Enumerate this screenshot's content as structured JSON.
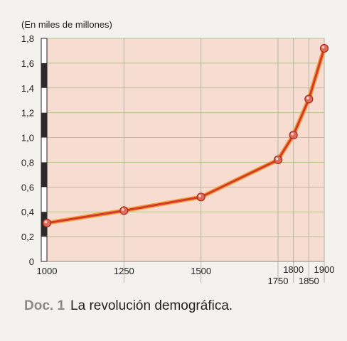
{
  "chart_data": {
    "type": "line",
    "title": "",
    "unit_label": "(En miles de millones)",
    "xlabel": "",
    "ylabel": "",
    "x": [
      1000,
      1250,
      1500,
      1750,
      1800,
      1850,
      1900
    ],
    "x_tick_labels": [
      "1000",
      "1250",
      "1500",
      "1750",
      "1800",
      "1850",
      "1900"
    ],
    "y_tick_labels": [
      "0",
      "0,2",
      "0,4",
      "0,6",
      "0,8",
      "1,0",
      "1,2",
      "1,4",
      "1,6",
      "1,8"
    ],
    "y_ticks": [
      0,
      0.2,
      0.4,
      0.6,
      0.8,
      1.0,
      1.2,
      1.4,
      1.6,
      1.8
    ],
    "ylim": [
      0,
      1.8
    ],
    "series": [
      {
        "values": [
          0.31,
          0.41,
          0.52,
          0.82,
          1.02,
          1.31,
          1.72
        ]
      }
    ],
    "grid": true,
    "colors": {
      "plot_background": "#f7dcd2",
      "grid": "#b7c48a",
      "line": "#d33a2c",
      "line_highlight": "#f2a13a",
      "marker": "#e06a58"
    }
  },
  "caption": {
    "doc_label": "Doc. 1",
    "text": "La revolución demográfica."
  }
}
